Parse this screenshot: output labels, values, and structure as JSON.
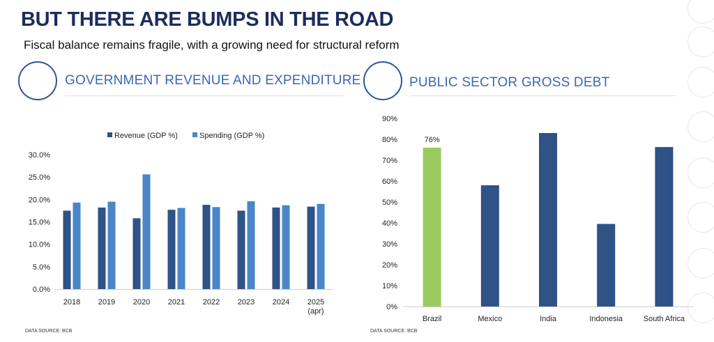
{
  "header": {
    "title": "BUT THERE ARE BUMPS IN THE ROAD",
    "subtitle": "Fiscal balance remains fragile, with a growing need for structural reform"
  },
  "left_panel": {
    "heading": "GOVERNMENT REVENUE AND EXPENDITURE",
    "source": "DATA SOURCE: BCB"
  },
  "right_panel": {
    "heading": "PUBLIC SECTOR GROSS DEBT",
    "source": "DATA SOURCE: BCB"
  },
  "colors": {
    "dark_blue": "#2f5287",
    "light_blue": "#4a86c8",
    "green": "#9bcb5e",
    "accent": "#2e5597"
  },
  "chart_data": [
    {
      "type": "bar",
      "categories": [
        "2018",
        "2019",
        "2020",
        "2021",
        "2022",
        "2023",
        "2024",
        "2025\n(apr)"
      ],
      "series": [
        {
          "name": "Revenue (GDP %)",
          "values": [
            17.5,
            18.2,
            15.8,
            17.7,
            18.8,
            17.5,
            18.2,
            18.4
          ]
        },
        {
          "name": "Spending (GDP %)",
          "values": [
            19.3,
            19.5,
            25.6,
            18.1,
            18.3,
            19.6,
            18.7,
            19.0
          ]
        }
      ],
      "ylim": [
        0,
        30
      ],
      "yticks": [
        "0.0%",
        "5.0%",
        "10.0%",
        "15.0%",
        "20.0%",
        "25.0%",
        "30.0%"
      ],
      "legend": "top",
      "grid": false
    },
    {
      "type": "bar",
      "categories": [
        "Brazil",
        "Mexico",
        "India",
        "Indonesia",
        "South Africa"
      ],
      "values": [
        76,
        58,
        83,
        39.5,
        76.3
      ],
      "highlight": "Brazil",
      "data_labels": {
        "Brazil": "76%"
      },
      "ylim": [
        0,
        90
      ],
      "yticks": [
        "0%",
        "10%",
        "20%",
        "30%",
        "40%",
        "50%",
        "60%",
        "70%",
        "80%",
        "90%"
      ],
      "grid": false
    }
  ]
}
